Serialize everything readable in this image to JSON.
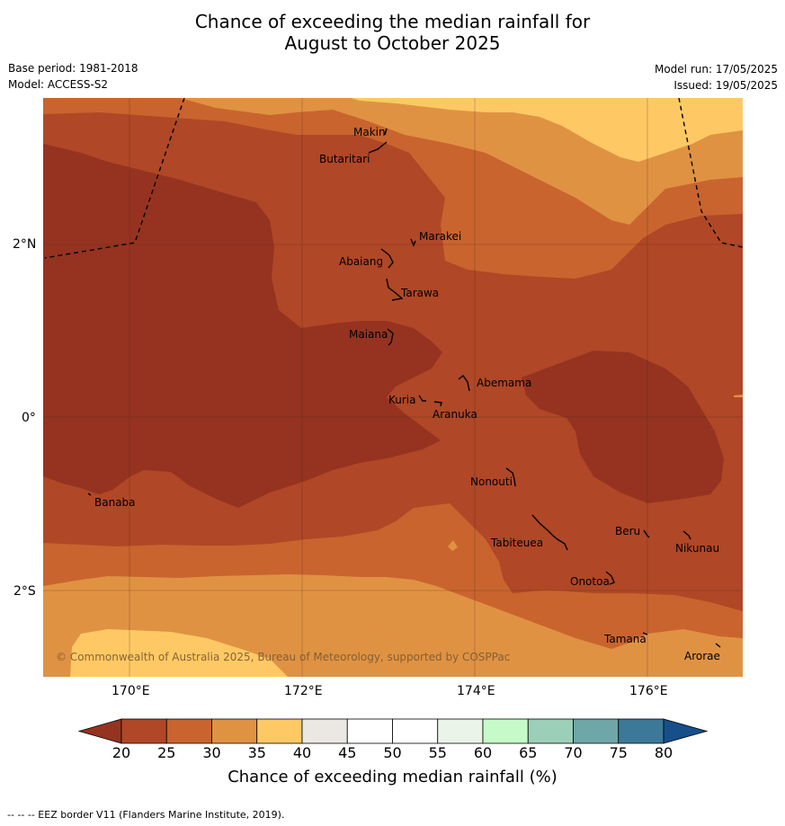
{
  "title": {
    "line1": "Chance of exceeding the median rainfall for",
    "line2": "August to October 2025"
  },
  "meta": {
    "base_period": "Base period: 1981-2018",
    "model": "Model: ACCESS-S2",
    "model_run": "Model run: 17/05/2025",
    "issued": "Issued: 19/05/2025"
  },
  "map": {
    "lon_labels": [
      "170°E",
      "172°E",
      "174°E",
      "176°E"
    ],
    "lat_labels": [
      "2°N",
      "0°",
      "2°S"
    ],
    "places": [
      "Makin",
      "Butaritari",
      "Marakei",
      "Abaiang",
      "Tarawa",
      "Maiana",
      "Abemama",
      "Kuria",
      "Aranuka",
      "Banaba",
      "Nonouti",
      "Beru",
      "Nikunau",
      "Tabiteuea",
      "Onotoa",
      "Tamana",
      "Arorae"
    ],
    "copyright": "© Commonwealth of Australia 2025, Bureau of Meteorology, supported by COSPPac",
    "region_colors": {
      "20-25": "#b04726",
      "lt20": "#953320",
      "25-30": "#c9642f",
      "30-35": "#e09243",
      "35-40": "#fec965"
    }
  },
  "colorbar": {
    "ticks": [
      "20",
      "25",
      "30",
      "35",
      "40",
      "45",
      "50",
      "55",
      "60",
      "65",
      "70",
      "75",
      "80"
    ],
    "colors": [
      "#b04726",
      "#c9642f",
      "#e09243",
      "#fec965",
      "#ebe8e3",
      "#ffffff",
      "#ffffff",
      "#eaf4e8",
      "#c6fbc9",
      "#9bcfb7",
      "#6fa6a8",
      "#3c7999"
    ],
    "under_color": "#953320",
    "over_color": "#164f8a",
    "label": "Chance of exceeding median rainfall (%)"
  },
  "footer": "--  --  -- EEZ border V11 (Flanders Marine Institute, 2019)."
}
